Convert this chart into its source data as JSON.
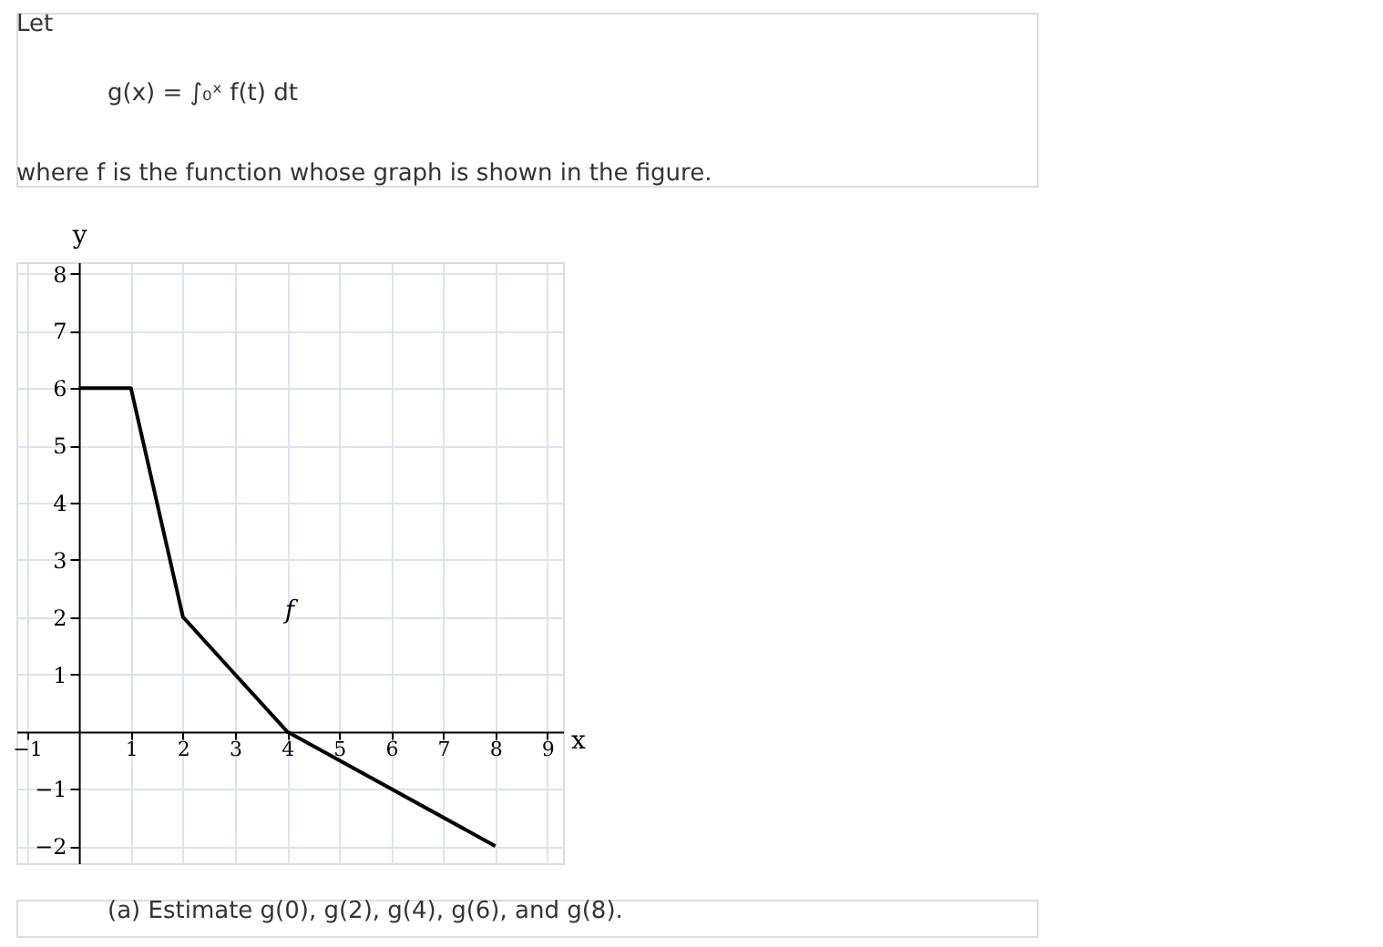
{
  "chart_data": {
    "type": "line",
    "xlabel": "x",
    "ylabel": "y",
    "x": [
      0,
      1,
      2,
      4,
      8
    ],
    "series": [
      {
        "color": "#000000",
        "values": [
          6,
          6,
          2,
          0,
          -2
        ]
      }
    ],
    "xlim": [
      -1.2,
      9.3
    ],
    "ylim": [
      -2.3,
      8.2
    ],
    "xticks": [
      -1,
      1,
      2,
      3,
      4,
      5,
      6,
      7,
      8,
      9
    ],
    "yticks": [
      -2,
      -1,
      1,
      2,
      3,
      4,
      5,
      6,
      7,
      8
    ],
    "grid": true,
    "marker": "none",
    "line_style": "solid",
    "annotations": [
      "Let",
      "g(x) = ∫₀ˣ f(t) dt",
      "where f is the function whose graph is shown in the figure.",
      "f",
      "(a) Estimate g(0), g(2), g(4), g(6), and g(8)."
    ]
  }
}
